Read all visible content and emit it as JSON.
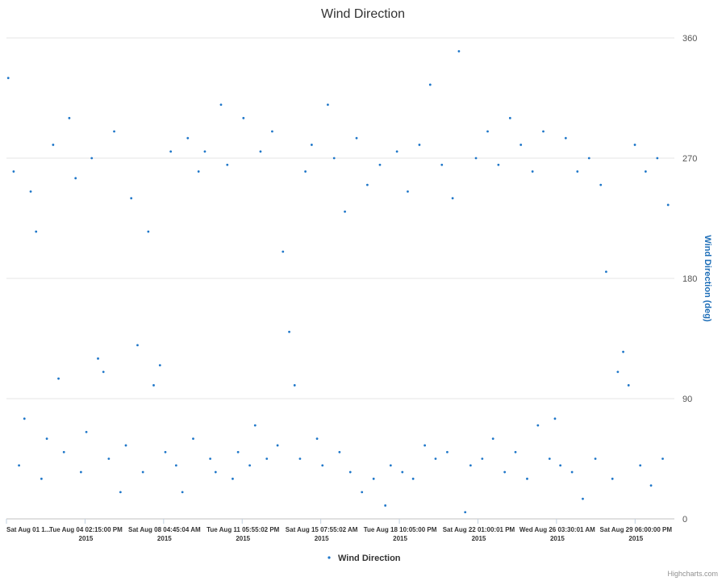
{
  "chart_data": {
    "type": "scatter",
    "title": "Wind Direction",
    "ylabel": "Wind Direction (deg)",
    "ylim": [
      0,
      360
    ],
    "yticks": [
      0,
      90,
      180,
      270,
      360
    ],
    "grid": true,
    "legend_position": "bottom-center",
    "x_range": [
      "2015-08-01",
      "2015-09-01"
    ],
    "x_tick_labels": [
      {
        "line1": "Sat Aug 01 1...",
        "line2": ""
      },
      {
        "line1": "Tue Aug 04 02:15:00 PM",
        "line2": "2015"
      },
      {
        "line1": "Sat Aug 08 04:45:04 AM",
        "line2": "2015"
      },
      {
        "line1": "Tue Aug 11 05:55:02 PM",
        "line2": "2015"
      },
      {
        "line1": "Sat Aug 15 07:55:02 AM",
        "line2": "2015"
      },
      {
        "line1": "Tue Aug 18 10:05:00 PM",
        "line2": "2015"
      },
      {
        "line1": "Sat Aug 22 01:00:01 PM",
        "line2": "2015"
      },
      {
        "line1": "Wed Aug 26 03:30:01 AM",
        "line2": "2015"
      },
      {
        "line1": "Sat Aug 29 06:00:00 PM",
        "line2": "2015"
      }
    ],
    "series": [
      {
        "name": "Wind Direction",
        "color": "#1f77c9",
        "points": [
          {
            "x": "2015-08-01T02:00",
            "y": 330
          },
          {
            "x": "2015-08-01T08:00",
            "y": 260
          },
          {
            "x": "2015-08-01T14:00",
            "y": 40
          },
          {
            "x": "2015-08-01T20:00",
            "y": 75
          },
          {
            "x": "2015-08-02T03:00",
            "y": 245
          },
          {
            "x": "2015-08-02T09:00",
            "y": 215
          },
          {
            "x": "2015-08-02T15:00",
            "y": 30
          },
          {
            "x": "2015-08-02T21:00",
            "y": 60
          },
          {
            "x": "2015-08-03T04:00",
            "y": 280
          },
          {
            "x": "2015-08-03T10:00",
            "y": 105
          },
          {
            "x": "2015-08-03T16:00",
            "y": 50
          },
          {
            "x": "2015-08-03T22:00",
            "y": 300
          },
          {
            "x": "2015-08-04T05:00",
            "y": 255
          },
          {
            "x": "2015-08-04T11:00",
            "y": 35
          },
          {
            "x": "2015-08-04T17:00",
            "y": 65
          },
          {
            "x": "2015-08-04T23:00",
            "y": 270
          },
          {
            "x": "2015-08-05T06:00",
            "y": 120
          },
          {
            "x": "2015-08-05T12:00",
            "y": 110
          },
          {
            "x": "2015-08-05T18:00",
            "y": 45
          },
          {
            "x": "2015-08-06T00:00",
            "y": 290
          },
          {
            "x": "2015-08-06T07:00",
            "y": 20
          },
          {
            "x": "2015-08-06T13:00",
            "y": 55
          },
          {
            "x": "2015-08-06T19:00",
            "y": 240
          },
          {
            "x": "2015-08-07T02:00",
            "y": 130
          },
          {
            "x": "2015-08-07T08:00",
            "y": 35
          },
          {
            "x": "2015-08-07T14:00",
            "y": 215
          },
          {
            "x": "2015-08-07T20:00",
            "y": 100
          },
          {
            "x": "2015-08-08T03:00",
            "y": 115
          },
          {
            "x": "2015-08-08T09:00",
            "y": 50
          },
          {
            "x": "2015-08-08T15:00",
            "y": 275
          },
          {
            "x": "2015-08-08T21:00",
            "y": 40
          },
          {
            "x": "2015-08-09T04:00",
            "y": 20
          },
          {
            "x": "2015-08-09T10:00",
            "y": 285
          },
          {
            "x": "2015-08-09T16:00",
            "y": 60
          },
          {
            "x": "2015-08-09T22:00",
            "y": 260
          },
          {
            "x": "2015-08-10T05:00",
            "y": 275
          },
          {
            "x": "2015-08-10T11:00",
            "y": 45
          },
          {
            "x": "2015-08-10T17:00",
            "y": 35
          },
          {
            "x": "2015-08-10T23:00",
            "y": 310
          },
          {
            "x": "2015-08-11T06:00",
            "y": 265
          },
          {
            "x": "2015-08-11T12:00",
            "y": 30
          },
          {
            "x": "2015-08-11T18:00",
            "y": 50
          },
          {
            "x": "2015-08-12T00:00",
            "y": 300
          },
          {
            "x": "2015-08-12T07:00",
            "y": 40
          },
          {
            "x": "2015-08-12T13:00",
            "y": 70
          },
          {
            "x": "2015-08-12T19:00",
            "y": 275
          },
          {
            "x": "2015-08-13T02:00",
            "y": 45
          },
          {
            "x": "2015-08-13T08:00",
            "y": 290
          },
          {
            "x": "2015-08-13T14:00",
            "y": 55
          },
          {
            "x": "2015-08-13T20:00",
            "y": 200
          },
          {
            "x": "2015-08-14T03:00",
            "y": 140
          },
          {
            "x": "2015-08-14T09:00",
            "y": 100
          },
          {
            "x": "2015-08-14T15:00",
            "y": 45
          },
          {
            "x": "2015-08-14T21:00",
            "y": 260
          },
          {
            "x": "2015-08-15T04:00",
            "y": 280
          },
          {
            "x": "2015-08-15T10:00",
            "y": 60
          },
          {
            "x": "2015-08-15T16:00",
            "y": 40
          },
          {
            "x": "2015-08-15T22:00",
            "y": 310
          },
          {
            "x": "2015-08-16T05:00",
            "y": 270
          },
          {
            "x": "2015-08-16T11:00",
            "y": 50
          },
          {
            "x": "2015-08-16T17:00",
            "y": 230
          },
          {
            "x": "2015-08-16T23:00",
            "y": 35
          },
          {
            "x": "2015-08-17T06:00",
            "y": 285
          },
          {
            "x": "2015-08-17T12:00",
            "y": 20
          },
          {
            "x": "2015-08-17T18:00",
            "y": 250
          },
          {
            "x": "2015-08-18T01:00",
            "y": 30
          },
          {
            "x": "2015-08-18T08:00",
            "y": 265
          },
          {
            "x": "2015-08-18T14:00",
            "y": 10
          },
          {
            "x": "2015-08-18T20:00",
            "y": 40
          },
          {
            "x": "2015-08-19T03:00",
            "y": 275
          },
          {
            "x": "2015-08-19T09:00",
            "y": 35
          },
          {
            "x": "2015-08-19T15:00",
            "y": 245
          },
          {
            "x": "2015-08-19T21:00",
            "y": 30
          },
          {
            "x": "2015-08-20T04:00",
            "y": 280
          },
          {
            "x": "2015-08-20T10:00",
            "y": 55
          },
          {
            "x": "2015-08-20T16:00",
            "y": 325
          },
          {
            "x": "2015-08-20T22:00",
            "y": 45
          },
          {
            "x": "2015-08-21T05:00",
            "y": 265
          },
          {
            "x": "2015-08-21T11:00",
            "y": 50
          },
          {
            "x": "2015-08-21T17:00",
            "y": 240
          },
          {
            "x": "2015-08-22T00:00",
            "y": 350
          },
          {
            "x": "2015-08-22T07:00",
            "y": 5
          },
          {
            "x": "2015-08-22T13:00",
            "y": 40
          },
          {
            "x": "2015-08-22T19:00",
            "y": 270
          },
          {
            "x": "2015-08-23T02:00",
            "y": 45
          },
          {
            "x": "2015-08-23T08:00",
            "y": 290
          },
          {
            "x": "2015-08-23T14:00",
            "y": 60
          },
          {
            "x": "2015-08-23T20:00",
            "y": 265
          },
          {
            "x": "2015-08-24T03:00",
            "y": 35
          },
          {
            "x": "2015-08-24T09:00",
            "y": 300
          },
          {
            "x": "2015-08-24T15:00",
            "y": 50
          },
          {
            "x": "2015-08-24T21:00",
            "y": 280
          },
          {
            "x": "2015-08-25T04:00",
            "y": 30
          },
          {
            "x": "2015-08-25T10:00",
            "y": 260
          },
          {
            "x": "2015-08-25T16:00",
            "y": 70
          },
          {
            "x": "2015-08-25T22:00",
            "y": 290
          },
          {
            "x": "2015-08-26T05:00",
            "y": 45
          },
          {
            "x": "2015-08-26T11:00",
            "y": 75
          },
          {
            "x": "2015-08-26T17:00",
            "y": 40
          },
          {
            "x": "2015-08-26T23:00",
            "y": 285
          },
          {
            "x": "2015-08-27T06:00",
            "y": 35
          },
          {
            "x": "2015-08-27T12:00",
            "y": 260
          },
          {
            "x": "2015-08-27T18:00",
            "y": 15
          },
          {
            "x": "2015-08-28T01:00",
            "y": 270
          },
          {
            "x": "2015-08-28T08:00",
            "y": 45
          },
          {
            "x": "2015-08-28T14:00",
            "y": 250
          },
          {
            "x": "2015-08-28T20:00",
            "y": 185
          },
          {
            "x": "2015-08-29T03:00",
            "y": 30
          },
          {
            "x": "2015-08-29T09:00",
            "y": 110
          },
          {
            "x": "2015-08-29T15:00",
            "y": 125
          },
          {
            "x": "2015-08-29T21:00",
            "y": 100
          },
          {
            "x": "2015-08-30T04:00",
            "y": 280
          },
          {
            "x": "2015-08-30T10:00",
            "y": 40
          },
          {
            "x": "2015-08-30T16:00",
            "y": 260
          },
          {
            "x": "2015-08-30T22:00",
            "y": 25
          },
          {
            "x": "2015-08-31T05:00",
            "y": 270
          },
          {
            "x": "2015-08-31T11:00",
            "y": 45
          },
          {
            "x": "2015-08-31T17:00",
            "y": 235
          }
        ]
      }
    ]
  },
  "credits": "Highcharts.com"
}
